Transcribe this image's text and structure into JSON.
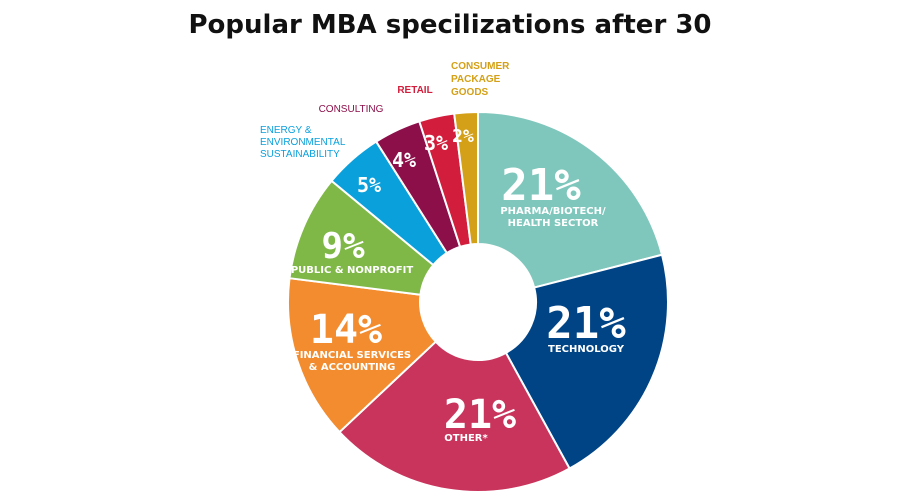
{
  "chart_data": {
    "type": "pie",
    "title": "Popular MBA specilizations after 30",
    "inner_hole": true,
    "slices": [
      {
        "label": "PHARMA/BIOTECH/ HEALTH SECTOR",
        "label_lines": [
          "PHARMA/BIOTECH/",
          "HEALTH SECTOR"
        ],
        "value": 21,
        "display": "21%",
        "color": "#7fc7bc",
        "label_position": "inside"
      },
      {
        "label": "TECHNOLOGY",
        "label_lines": [
          "TECHNOLOGY"
        ],
        "value": 21,
        "display": "21%",
        "color": "#004486",
        "label_position": "inside"
      },
      {
        "label": "OTHER*",
        "label_lines": [
          "OTHER*"
        ],
        "value": 21,
        "display": "21%",
        "color": "#c9345c",
        "label_position": "inside"
      },
      {
        "label": "FINANCIAL SERVICES & ACCOUNTING",
        "label_lines": [
          "FINANCIAL SERVICES",
          "& ACCOUNTING"
        ],
        "value": 14,
        "display": "14%",
        "color": "#f28c2e",
        "label_position": "inside"
      },
      {
        "label": "PUBLIC & NONPROFIT",
        "label_lines": [
          "PUBLIC & NONPROFIT"
        ],
        "value": 9,
        "display": "9%",
        "color": "#7fb847",
        "label_position": "inside"
      },
      {
        "label": "ENERGY & ENVIRONMENTAL SUSTAINABILITY",
        "label_lines": [
          "ENERGY &",
          "ENVIRONMENTAL",
          "SUSTAINABILITY"
        ],
        "value": 5,
        "display": "5%",
        "color": "#0aa0dc",
        "label_position": "outside"
      },
      {
        "label": "CONSULTING",
        "label_lines": [
          "CONSULTING"
        ],
        "value": 4,
        "display": "4%",
        "color": "#8c0f4a",
        "label_position": "outside"
      },
      {
        "label": "RETAIL",
        "label_lines": [
          "RETAIL"
        ],
        "value": 3,
        "display": "3%",
        "color": "#d21e3c",
        "label_position": "outside"
      },
      {
        "label": "CONSUMER PACKAGE GOODS",
        "label_lines": [
          "CONSUMER",
          "PACKAGE",
          "GOODS"
        ],
        "value": 2,
        "display": "2%",
        "color": "#d4a017",
        "label_position": "outside"
      }
    ]
  }
}
